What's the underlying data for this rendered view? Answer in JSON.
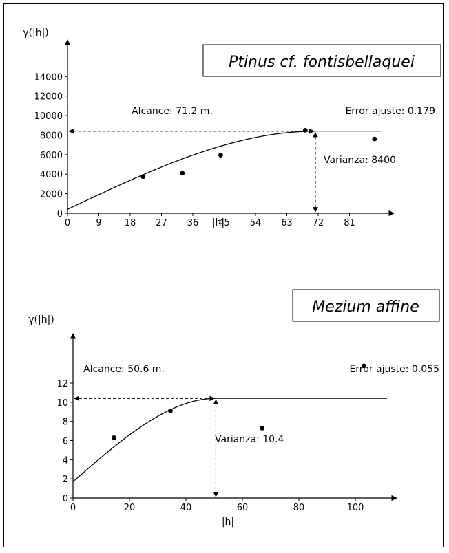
{
  "chart_data": [
    {
      "type": "scatter",
      "title": "Ptinus cf. fontisbellaquei",
      "ylabel": "γ(|h|)",
      "xlabel": "|h|",
      "xlim": [
        0,
        90
      ],
      "ylim": [
        0,
        15500
      ],
      "xticks": [
        0,
        9,
        18,
        27,
        36,
        45,
        54,
        63,
        72,
        81
      ],
      "yticks": [
        0,
        2000,
        4000,
        6000,
        8000,
        10000,
        12000,
        14000
      ],
      "points": [
        [
          21.7,
          3750
        ],
        [
          33,
          4100
        ],
        [
          44,
          5950
        ],
        [
          68.3,
          8500
        ],
        [
          88.2,
          7600
        ]
      ],
      "model": {
        "nugget": 400,
        "sill": 8400,
        "range": 71.2
      },
      "annotations": {
        "range_label": "Alcance: 71.2 m.",
        "variance_label": "Varianza: 8400",
        "error_label": "Error ajuste: 0.179"
      }
    },
    {
      "type": "scatter",
      "title": "Mezium affine",
      "ylabel": "γ(|h|)",
      "xlabel": "|h|",
      "xlim": [
        0,
        110
      ],
      "ylim": [
        0,
        14.3
      ],
      "xticks": [
        0,
        20,
        40,
        60,
        80,
        100
      ],
      "yticks": [
        0,
        2,
        4,
        6,
        8,
        10,
        12
      ],
      "points": [
        [
          14.5,
          6.3
        ],
        [
          34.5,
          9.1
        ],
        [
          67,
          7.3
        ],
        [
          103,
          13.8
        ]
      ],
      "model": {
        "nugget": 1.7,
        "sill": 10.4,
        "range": 50.6
      },
      "annotations": {
        "range_label": "Alcance: 50.6 m.",
        "variance_label": "Varianza: 10.4",
        "error_label": "Error ajuste: 0.055"
      }
    }
  ]
}
